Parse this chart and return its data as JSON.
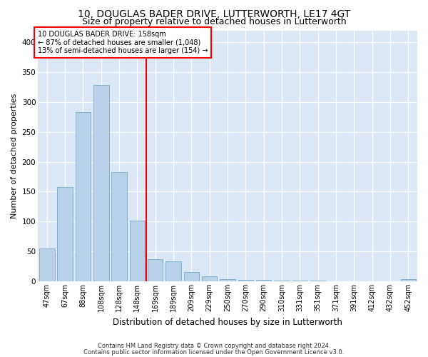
{
  "title": "10, DOUGLAS BADER DRIVE, LUTTERWORTH, LE17 4GT",
  "subtitle": "Size of property relative to detached houses in Lutterworth",
  "xlabel": "Distribution of detached houses by size in Lutterworth",
  "ylabel": "Number of detached properties",
  "bar_labels": [
    "47sqm",
    "67sqm",
    "88sqm",
    "108sqm",
    "128sqm",
    "148sqm",
    "169sqm",
    "189sqm",
    "209sqm",
    "229sqm",
    "250sqm",
    "270sqm",
    "290sqm",
    "310sqm",
    "331sqm",
    "351sqm",
    "371sqm",
    "391sqm",
    "412sqm",
    "432sqm",
    "452sqm"
  ],
  "bar_values": [
    55,
    158,
    283,
    328,
    183,
    102,
    37,
    33,
    16,
    8,
    4,
    3,
    2,
    1,
    1,
    1,
    0,
    0,
    0,
    0,
    4
  ],
  "bar_color": "#b8d0e8",
  "bar_edge_color": "#7aaac8",
  "red_line_x": 5.5,
  "annotation_line1": "10 DOUGLAS BADER DRIVE: 158sqm",
  "annotation_line2": "← 87% of detached houses are smaller (1,048)",
  "annotation_line3": "13% of semi-detached houses are larger (154) →",
  "ylim": [
    0,
    420
  ],
  "yticks": [
    0,
    50,
    100,
    150,
    200,
    250,
    300,
    350,
    400
  ],
  "footer1": "Contains HM Land Registry data © Crown copyright and database right 2024.",
  "footer2": "Contains public sector information licensed under the Open Government Licence v3.0.",
  "fig_bg_color": "#ffffff",
  "plot_bg_color": "#dce8f5",
  "grid_color": "#ffffff",
  "title_fontsize": 10,
  "subtitle_fontsize": 9,
  "ylabel_fontsize": 8,
  "xlabel_fontsize": 8.5,
  "tick_fontsize": 7,
  "footer_fontsize": 6
}
